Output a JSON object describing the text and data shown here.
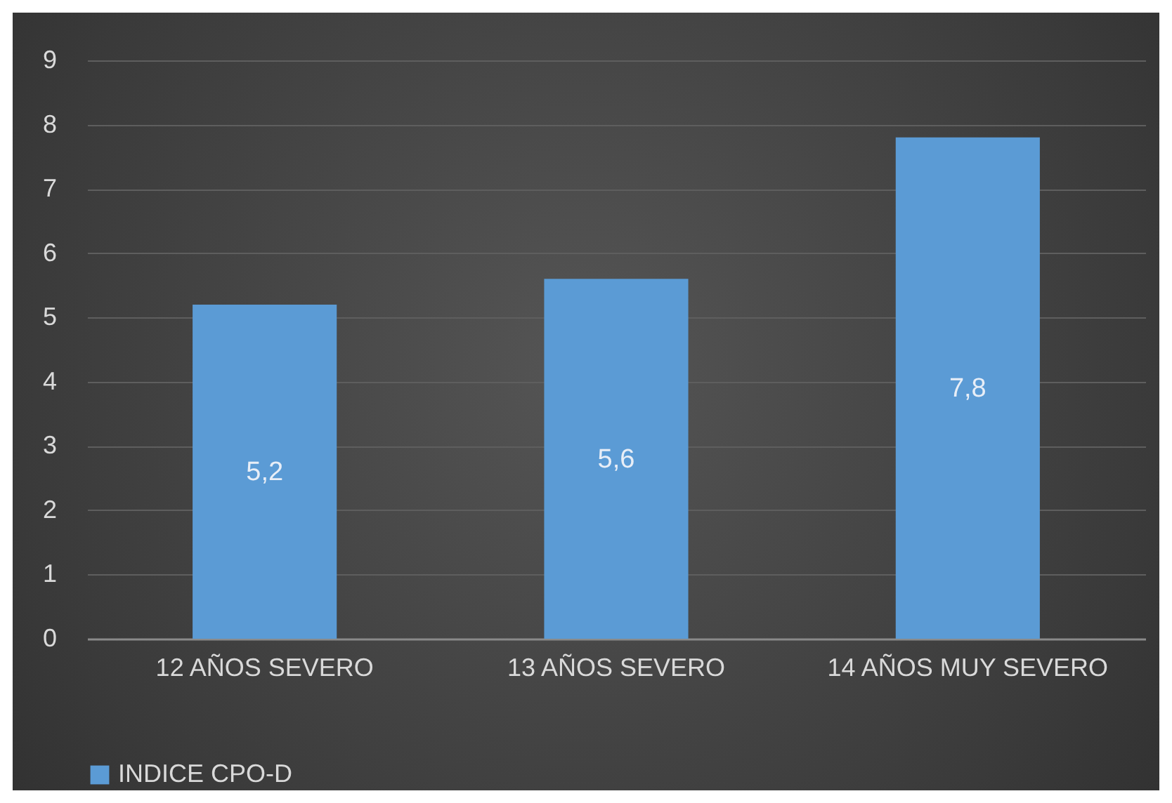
{
  "chart_data": {
    "type": "bar",
    "categories": [
      "12 AÑOS SEVERO",
      "13 AÑOS SEVERO",
      "14 AÑOS MUY SEVERO"
    ],
    "series": [
      {
        "name": "INDICE CPO-D",
        "color": "#5b9bd5",
        "values": [
          5.2,
          5.6,
          7.8
        ],
        "value_labels": [
          "5,2",
          "5,6",
          "7,8"
        ]
      }
    ],
    "ylim": [
      0,
      9
    ],
    "yticks": [
      0,
      1,
      2,
      3,
      4,
      5,
      6,
      7,
      8,
      9
    ],
    "grid": "y",
    "legend": "bottom"
  }
}
